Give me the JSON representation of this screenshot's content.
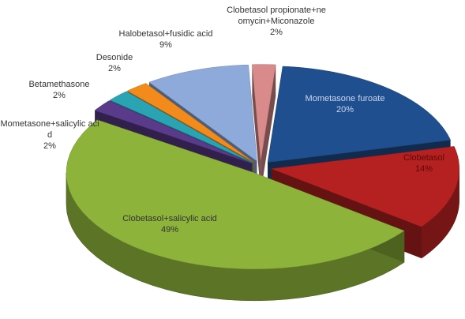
{
  "chart_data": {
    "type": "pie3d",
    "categories": [
      "Mometasone furoate",
      "Clobetasol",
      "Clobetasol+salicylic acid",
      "Mometasone+salicylic acid",
      "Betamethasone",
      "Desonide",
      "Halobetasol+fusidic acid",
      "Clobetasol propionate+neomycin+Miconazole"
    ],
    "values": [
      20,
      14,
      49,
      2,
      2,
      2,
      9,
      2
    ],
    "value_labels": [
      "20%",
      "14%",
      "49%",
      "2%",
      "2%",
      "2%",
      "9%",
      "2%"
    ],
    "colors": [
      "#1f4f8f",
      "#b52020",
      "#8db33a",
      "#5a3a8a",
      "#2aa3b3",
      "#f28a1c",
      "#8eaadb",
      "#d98a8a"
    ]
  }
}
